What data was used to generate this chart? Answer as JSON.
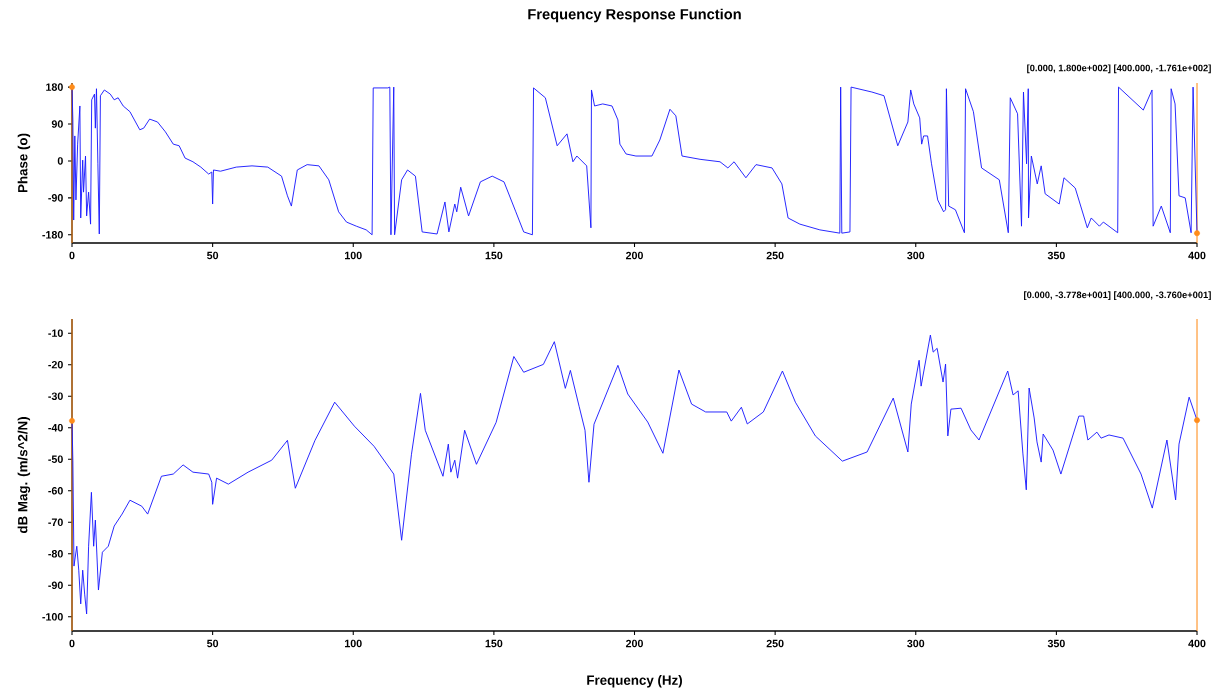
{
  "chart_data": [
    {
      "type": "line",
      "title": "Frequency Response Function",
      "ylabel": "Phase (o)",
      "annotations": [
        "[0.000, 1.800e+002] [400.000, -1.761e+002]"
      ],
      "xlim": [
        0,
        400
      ],
      "ylim": [
        -200,
        190
      ],
      "xticks": [
        0,
        50,
        100,
        150,
        200,
        250,
        300,
        350,
        400
      ],
      "yticks": [
        -180,
        -90,
        0,
        90,
        180
      ],
      "grid": false,
      "ref_lines": [
        {
          "axis": "x",
          "value": 0,
          "color": "#ff8c1a"
        },
        {
          "axis": "x",
          "value": 400,
          "color": "#ff8c1a"
        }
      ],
      "series": [
        {
          "color": "#1a1aff",
          "marker": "none",
          "x": [
            0,
            0.3,
            0.6,
            1.0,
            1.4,
            2.0,
            2.8,
            3.1,
            3.8,
            4.1,
            4.8,
            5.2,
            5.9,
            6.6,
            7.0,
            8.0,
            8.3,
            8.7,
            9.2,
            9.7,
            10.1,
            11.5,
            13.6,
            15,
            16.4,
            18.2,
            20.6,
            24.1,
            25.5,
            27.6,
            30.4,
            33.2,
            36,
            38.1,
            40.2,
            43,
            45.8,
            48.6,
            49.7,
            50,
            50.3,
            52.8,
            58.4,
            64,
            69.6,
            74.5,
            76.6,
            78,
            80.1,
            83.6,
            87.8,
            91.3,
            94.8,
            97.6,
            101.1,
            104.6,
            106.7,
            107.1,
            112.3,
            113,
            113.4,
            114.4,
            114.7,
            117.2,
            119.3,
            122.1,
            124.5,
            129.8,
            132.6,
            134,
            136.1,
            136.8,
            138.2,
            141,
            145.2,
            149.4,
            153.6,
            157.8,
            160.6,
            163.7,
            164.1,
            168.3,
            172.5,
            176,
            178.1,
            179.5,
            183,
            184.5,
            184.7,
            185.8,
            188.7,
            192,
            194.1,
            194.8,
            197,
            200.5,
            206.2,
            209,
            212.6,
            214.7,
            216.9,
            223.3,
            230.4,
            233.2,
            235.4,
            239.6,
            243.2,
            248.9,
            252.4,
            254.6,
            258.8,
            265.9,
            273,
            273.3,
            273.7,
            276.6,
            277,
            284.4,
            288.7,
            293.6,
            297.2,
            298.2,
            299.3,
            301.4,
            302.1,
            302.8,
            304.2,
            305.6,
            307.8,
            309.9,
            310.6,
            310.9,
            311.7,
            314.1,
            317.3,
            317.7,
            320.5,
            323.4,
            329.7,
            332.9,
            333.6,
            336.2,
            337.6,
            338.3,
            339.4,
            340,
            340.1,
            341.1,
            343.2,
            344.6,
            346,
            351,
            352.7,
            356.7,
            361,
            362.4,
            365.3,
            366.7,
            371.8,
            372.1,
            380.9,
            384,
            384.4,
            387.3,
            390.5,
            390.8,
            392.2,
            393.6,
            395.8,
            397.9,
            398.6,
            400
          ],
          "values": [
            180,
            100,
            -144,
            61,
            -95,
            41,
            134,
            -139,
            2,
            -76,
            12,
            -134,
            -76,
            -154,
            149,
            163,
            80,
            176,
            -7,
            -178,
            159,
            173,
            163,
            149,
            154,
            134,
            120,
            76,
            80,
            102,
            95,
            71,
            41,
            37,
            7,
            -2,
            -15,
            -32,
            -27,
            -105,
            -22,
            -25,
            -15,
            -12,
            -15,
            -37,
            -85,
            -110,
            -22,
            -9,
            -12,
            -46,
            -124,
            -149,
            -159,
            -168,
            -180,
            178,
            178,
            180,
            -180,
            180,
            -180,
            -46,
            -22,
            -37,
            -173,
            -178,
            -100,
            -173,
            -105,
            -124,
            -64,
            -134,
            -51,
            -37,
            -51,
            -124,
            -173,
            -180,
            178,
            154,
            37,
            66,
            -2,
            12,
            -12,
            -163,
            173,
            134,
            139,
            134,
            100,
            41,
            17,
            12,
            12,
            51,
            126,
            110,
            12,
            4,
            -2,
            -17,
            -2,
            -41,
            -9,
            -17,
            -56,
            -139,
            -154,
            -168,
            -176,
            180,
            -176,
            -173,
            180,
            168,
            159,
            37,
            95,
            173,
            139,
            105,
            41,
            61,
            61,
            -7,
            -95,
            -124,
            -119,
            176,
            -110,
            -119,
            -175,
            176,
            120,
            -17,
            -46,
            -175,
            154,
            115,
            -159,
            168,
            -7,
            176,
            -139,
            12,
            -56,
            -12,
            -80,
            -105,
            -41,
            -66,
            -163,
            -139,
            -159,
            -149,
            -175,
            180,
            124,
            173,
            -159,
            -110,
            -175,
            176,
            139,
            -85,
            -90,
            -175,
            180,
            -176
          ]
        },
        {
          "type": "scatter",
          "color": "#ff8c1a",
          "marker": "circle",
          "x": [
            0,
            400
          ],
          "values": [
            180,
            -176
          ]
        }
      ]
    },
    {
      "type": "line",
      "xlabel": "Frequency (Hz)",
      "ylabel": "dB Mag. (m/s^2/N)",
      "annotations": [
        "[0.000, -3.778e+001] [400.000, -3.760e+001]"
      ],
      "xlim": [
        0,
        400
      ],
      "ylim": [
        -104.5,
        -5.5
      ],
      "xticks": [
        0,
        50,
        100,
        150,
        200,
        250,
        300,
        350,
        400
      ],
      "yticks": [
        -100,
        -90,
        -80,
        -70,
        -60,
        -50,
        -40,
        -30,
        -20,
        -10
      ],
      "grid": false,
      "ref_lines": [
        {
          "axis": "x",
          "value": 0,
          "color": "#ff8c1a"
        },
        {
          "axis": "x",
          "value": 400,
          "color": "#ff8c1a"
        }
      ],
      "series": [
        {
          "color": "#1a1aff",
          "marker": "none",
          "x": [
            0,
            0.3,
            0.7,
            1.7,
            2.4,
            3.1,
            3.8,
            4.5,
            5.2,
            5.9,
            6.9,
            7.7,
            8.3,
            9.4,
            10.8,
            12.9,
            15,
            17.8,
            20.6,
            24.8,
            26.9,
            31.8,
            36,
            39.5,
            43,
            48.6,
            49.7,
            50,
            51.4,
            55.6,
            62.6,
            71,
            76.6,
            79.4,
            86.4,
            93.4,
            100.4,
            107.4,
            114.4,
            117.2,
            120.7,
            123.9,
            125.6,
            131.9,
            133.8,
            134.7,
            136.1,
            137.1,
            139.6,
            143.8,
            150.8,
            157.1,
            160.6,
            167.6,
            171.5,
            175.4,
            177.2,
            180.3,
            182.4,
            183.8,
            185.6,
            194.1,
            197.6,
            204.7,
            210.1,
            215.8,
            220.3,
            225.3,
            232.8,
            234.4,
            238,
            240.1,
            245.8,
            252.6,
            257.2,
            264.3,
            273.9,
            282.7,
            292,
            297.2,
            298.4,
            301.2,
            301.9,
            305.2,
            306.2,
            307.6,
            309.7,
            310.6,
            311.4,
            312.5,
            316.1,
            319.6,
            322.5,
            332.7,
            334.6,
            336.4,
            338.1,
            339.3,
            340.3,
            342.1,
            343.1,
            344.6,
            345.3,
            348.8,
            351.6,
            358,
            359.7,
            361.2,
            364.4,
            365.9,
            368.7,
            373.7,
            380.1,
            384.1,
            389.3,
            392.4,
            393.6,
            397.2,
            400
          ],
          "values": [
            -37.8,
            -50.3,
            -83.9,
            -77.6,
            -85.2,
            -95.9,
            -85.2,
            -92.8,
            -99.1,
            -77.6,
            -60.5,
            -77.6,
            -69.3,
            -91.5,
            -79.5,
            -77.6,
            -71.2,
            -67.4,
            -63,
            -64.9,
            -67.4,
            -55.4,
            -54.7,
            -51.8,
            -54.1,
            -54.7,
            -57.3,
            -64.3,
            -56,
            -57.9,
            -54.1,
            -50.3,
            -44,
            -59.2,
            -44,
            -31.9,
            -39.5,
            -45.9,
            -54.7,
            -75.7,
            -48.4,
            -29.1,
            -40.8,
            -55.4,
            -45.2,
            -54.1,
            -50.3,
            -56,
            -40.8,
            -51.6,
            -38.3,
            -17.4,
            -22.4,
            -19.9,
            -12.7,
            -27.5,
            -21.8,
            -33.2,
            -40.8,
            -57.3,
            -38.9,
            -20.2,
            -29.3,
            -38.2,
            -48.1,
            -21.7,
            -32.5,
            -35,
            -35,
            -37.9,
            -33.5,
            -38.8,
            -35,
            -22,
            -31.9,
            -42.6,
            -50.6,
            -47.7,
            -30.6,
            -47.7,
            -32.5,
            -18.6,
            -26.8,
            -10.6,
            -16,
            -14.8,
            -25.5,
            -19.8,
            -42.6,
            -34.1,
            -33.8,
            -40.7,
            -43.9,
            -22,
            -29.6,
            -28.3,
            -48.3,
            -59.7,
            -27.4,
            -36.9,
            -44.5,
            -50.9,
            -42,
            -47.1,
            -54.7,
            -36.3,
            -36.3,
            -43.9,
            -41.4,
            -43.3,
            -42.3,
            -43.3,
            -54.7,
            -65.5,
            -43.9,
            -62.9,
            -45.2,
            -30.3,
            -37.6
          ]
        },
        {
          "type": "scatter",
          "color": "#ff8c1a",
          "marker": "circle",
          "x": [
            0,
            400
          ],
          "values": [
            -37.8,
            -37.6
          ]
        }
      ]
    }
  ]
}
